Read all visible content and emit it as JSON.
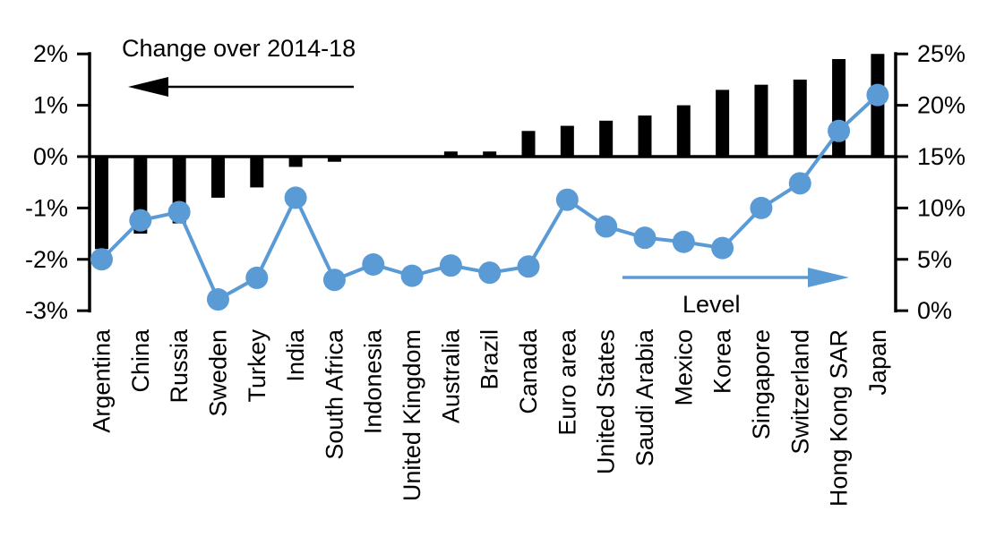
{
  "chart_data": {
    "type": "bar",
    "subtype": "combo-bar-line-dual-axis",
    "title": "",
    "categories": [
      "Argentina",
      "China",
      "Russia",
      "Sweden",
      "Turkey",
      "India",
      "South Africa",
      "Indonesia",
      "United Kingdom",
      "Australia",
      "Brazil",
      "Canada",
      "Euro area",
      "United States",
      "Saudi Arabia",
      "Mexico",
      "Korea",
      "Singapore",
      "Switzerland",
      "Hong Kong SAR",
      "Japan"
    ],
    "series": [
      {
        "name": "Change over 2014-18",
        "type": "bar",
        "axis": "left",
        "color": "#000000",
        "values": [
          -1.8,
          -1.5,
          -1.3,
          -0.8,
          -0.6,
          -0.2,
          -0.1,
          0,
          0,
          0.1,
          0.1,
          0.5,
          0.6,
          0.7,
          0.8,
          1.0,
          1.3,
          1.4,
          1.5,
          1.9,
          2.0
        ]
      },
      {
        "name": "Level",
        "type": "line",
        "axis": "right",
        "color": "#5B9BD5",
        "values": [
          5.0,
          8.8,
          9.6,
          1.1,
          3.2,
          11.0,
          3.0,
          4.5,
          3.4,
          4.4,
          3.7,
          4.3,
          10.8,
          8.2,
          7.1,
          6.7,
          6.1,
          10.0,
          12.4,
          17.5,
          21.0
        ]
      }
    ],
    "left_axis": {
      "min": -3,
      "max": 2,
      "tick_values": [
        2,
        1,
        0,
        -1,
        -2,
        -3
      ],
      "tick_labels": [
        "2%",
        "1%",
        "0%",
        "-1%",
        "-2%",
        "-3%"
      ]
    },
    "right_axis": {
      "min": 0,
      "max": 25,
      "tick_values": [
        25,
        20,
        15,
        10,
        5,
        0
      ],
      "tick_labels": [
        "25%",
        "20%",
        "15%",
        "10%",
        "5%",
        "0%"
      ]
    },
    "zero_alignment": {
      "left_value": 0,
      "right_value": 15
    },
    "annotations": {
      "bar_label": "Change over 2014-18",
      "bar_arrow_direction": "left",
      "line_label": "Level",
      "line_arrow_direction": "right"
    },
    "grid": false,
    "legend_position": "in-plot annotations with arrows"
  }
}
